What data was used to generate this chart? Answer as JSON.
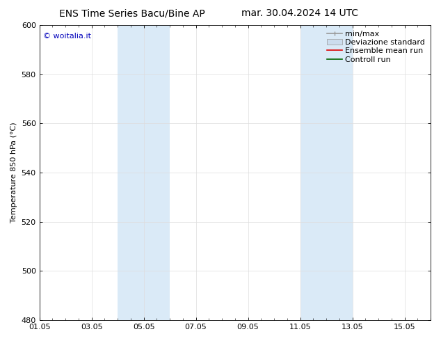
{
  "title_left": "ENS Time Series Bacu/Bine AP",
  "title_right": "mar. 30.04.2024 14 UTC",
  "ylabel": "Temperature 850 hPa (°C)",
  "ylim": [
    480,
    600
  ],
  "yticks": [
    480,
    500,
    520,
    540,
    560,
    580,
    600
  ],
  "xlim": [
    1,
    16
  ],
  "xtick_labels": [
    "01.05",
    "03.05",
    "05.05",
    "07.05",
    "09.05",
    "11.05",
    "13.05",
    "15.05"
  ],
  "xtick_positions": [
    1,
    3,
    5,
    7,
    9,
    11,
    13,
    15
  ],
  "shaded_bands": [
    {
      "x_start": 4.0,
      "x_end": 5.0,
      "color": "#daeaf7"
    },
    {
      "x_start": 5.0,
      "x_end": 6.0,
      "color": "#daeaf7"
    },
    {
      "x_start": 11.0,
      "x_end": 12.0,
      "color": "#daeaf7"
    },
    {
      "x_start": 12.0,
      "x_end": 13.0,
      "color": "#daeaf7"
    }
  ],
  "watermark_text": "© woitalia.it",
  "watermark_color": "#0000bb",
  "legend_entries": [
    {
      "label": "min/max",
      "color": "#999999",
      "lw": 1.2,
      "style": "minmax"
    },
    {
      "label": "Deviazione standard",
      "color": "#ccddee",
      "lw": 8,
      "style": "band"
    },
    {
      "label": "Ensemble mean run",
      "color": "#dd0000",
      "lw": 1.2,
      "style": "line"
    },
    {
      "label": "Controll run",
      "color": "#006600",
      "lw": 1.2,
      "style": "line"
    }
  ],
  "bg_color": "#ffffff",
  "font_size": 8,
  "title_font_size": 10,
  "watermark_font_size": 8
}
